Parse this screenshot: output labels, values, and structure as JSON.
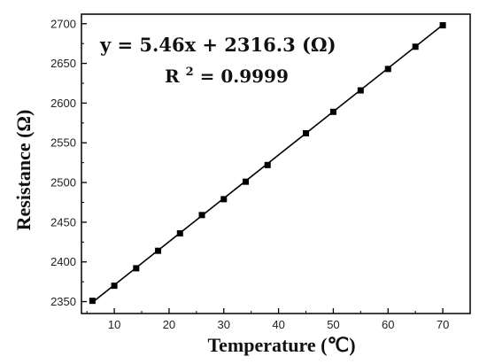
{
  "chart_data": {
    "type": "scatter",
    "title": "",
    "xlabel": "Temperature (℃)",
    "ylabel": "Resistance (Ω)",
    "xlim": [
      4,
      75
    ],
    "ylim": [
      2335,
      2712
    ],
    "xticks": [
      10,
      20,
      30,
      40,
      50,
      60,
      70
    ],
    "yticks": [
      2350,
      2400,
      2450,
      2500,
      2550,
      2600,
      2650,
      2700
    ],
    "grid": false,
    "legend": "none",
    "series": [
      {
        "marker": "square",
        "color": "#000000",
        "x": [
          6,
          10,
          14,
          18,
          22,
          26,
          30,
          34,
          38,
          45,
          50,
          55,
          60,
          65,
          70
        ],
        "y": [
          2351,
          2370,
          2392,
          2414,
          2436,
          2459,
          2479,
          2501,
          2522,
          2562,
          2589,
          2616,
          2643,
          2671,
          2698
        ]
      }
    ],
    "fit": {
      "slope": 5.46,
      "intercept": 2316.3,
      "color": "#000000"
    },
    "annotations": {
      "equation": "y = 5.46x + 2316.3 (Ω)",
      "r2_label": "R",
      "r2_sup": "2",
      "r2_value": "= 0.9999"
    }
  }
}
